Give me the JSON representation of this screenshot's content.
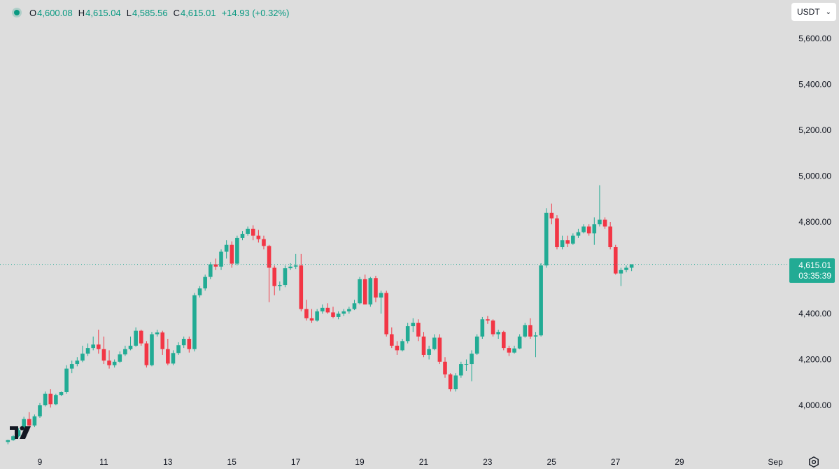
{
  "ohlc": {
    "o_label": "O",
    "o": "4,600.08",
    "h_label": "H",
    "h": "4,615.04",
    "l_label": "L",
    "l": "4,585.56",
    "c_label": "C",
    "c": "4,615.01",
    "change": "+14.93 (+0.32%)"
  },
  "currency": "USDT",
  "price_tag": {
    "price": "4,615.01",
    "countdown": "03:35:39"
  },
  "colors": {
    "up": "#22ab94",
    "down": "#f23645",
    "background": "#dddddd",
    "axis_text": "#131722"
  },
  "icons": {
    "logo": "tradingview-logo-icon",
    "settings": "gear-icon",
    "dropdown": "chevron-down-icon"
  },
  "chart_data": {
    "type": "candlestick",
    "interval": "4h",
    "y_ticks": [
      4000,
      4200,
      4400,
      4600,
      4800,
      5000,
      5200,
      5400,
      5600
    ],
    "y_tick_labels": [
      "4,000.00",
      "4,200.00",
      "4,400.00",
      "4,600.00",
      "4,800.00",
      "5,000.00",
      "5,200.00",
      "5,400.00",
      "5,600.00"
    ],
    "x_ticks": [
      {
        "label": "9",
        "t": 9
      },
      {
        "label": "11",
        "t": 11
      },
      {
        "label": "13",
        "t": 13
      },
      {
        "label": "15",
        "t": 15
      },
      {
        "label": "17",
        "t": 17
      },
      {
        "label": "19",
        "t": 19
      },
      {
        "label": "21",
        "t": 21
      },
      {
        "label": "23",
        "t": 23
      },
      {
        "label": "25",
        "t": 25
      },
      {
        "label": "27",
        "t": 27
      },
      {
        "label": "29",
        "t": 29
      },
      {
        "label": "Sep",
        "t": 32
      }
    ],
    "t_start": 8.0,
    "t_step": 0.1667,
    "last_price": 4615.01,
    "ohlc": [
      [
        3840,
        3850,
        3830,
        3848
      ],
      [
        3848,
        3870,
        3845,
        3865
      ],
      [
        3865,
        3900,
        3860,
        3892
      ],
      [
        3892,
        3950,
        3888,
        3940
      ],
      [
        3940,
        3970,
        3900,
        3912
      ],
      [
        3912,
        3960,
        3905,
        3952
      ],
      [
        3952,
        4010,
        3945,
        4000
      ],
      [
        4000,
        4060,
        3995,
        4050
      ],
      [
        4050,
        4070,
        3990,
        4005
      ],
      [
        4005,
        4050,
        4000,
        4045
      ],
      [
        4045,
        4060,
        4040,
        4058
      ],
      [
        4058,
        4175,
        4050,
        4160
      ],
      [
        4160,
        4195,
        4140,
        4180
      ],
      [
        4180,
        4210,
        4170,
        4195
      ],
      [
        4195,
        4260,
        4188,
        4225
      ],
      [
        4225,
        4270,
        4215,
        4250
      ],
      [
        4250,
        4300,
        4240,
        4265
      ],
      [
        4265,
        4330,
        4225,
        4245
      ],
      [
        4245,
        4300,
        4180,
        4195
      ],
      [
        4195,
        4240,
        4160,
        4175
      ],
      [
        4175,
        4200,
        4165,
        4190
      ],
      [
        4190,
        4235,
        4185,
        4222
      ],
      [
        4222,
        4260,
        4215,
        4245
      ],
      [
        4245,
        4300,
        4240,
        4260
      ],
      [
        4260,
        4340,
        4255,
        4325
      ],
      [
        4325,
        4330,
        4260,
        4270
      ],
      [
        4270,
        4280,
        4165,
        4175
      ],
      [
        4175,
        4320,
        4170,
        4310
      ],
      [
        4310,
        4330,
        4300,
        4318
      ],
      [
        4318,
        4325,
        4220,
        4245
      ],
      [
        4245,
        4290,
        4175,
        4182
      ],
      [
        4182,
        4240,
        4175,
        4228
      ],
      [
        4228,
        4275,
        4220,
        4262
      ],
      [
        4262,
        4300,
        4250,
        4290
      ],
      [
        4290,
        4300,
        4230,
        4245
      ],
      [
        4245,
        4490,
        4235,
        4480
      ],
      [
        4480,
        4520,
        4470,
        4510
      ],
      [
        4510,
        4570,
        4500,
        4560
      ],
      [
        4560,
        4625,
        4550,
        4615
      ],
      [
        4615,
        4640,
        4590,
        4605
      ],
      [
        4605,
        4680,
        4590,
        4670
      ],
      [
        4670,
        4720,
        4640,
        4700
      ],
      [
        4700,
        4715,
        4600,
        4618
      ],
      [
        4618,
        4740,
        4610,
        4730
      ],
      [
        4730,
        4760,
        4720,
        4748
      ],
      [
        4748,
        4780,
        4740,
        4770
      ],
      [
        4770,
        4785,
        4720,
        4740
      ],
      [
        4740,
        4765,
        4710,
        4725
      ],
      [
        4725,
        4740,
        4680,
        4695
      ],
      [
        4695,
        4700,
        4450,
        4600
      ],
      [
        4600,
        4610,
        4480,
        4520
      ],
      [
        4520,
        4540,
        4500,
        4525
      ],
      [
        4525,
        4610,
        4515,
        4598
      ],
      [
        4598,
        4620,
        4590,
        4605
      ],
      [
        4605,
        4660,
        4595,
        4610
      ],
      [
        4610,
        4660,
        4410,
        4420
      ],
      [
        4420,
        4460,
        4370,
        4380
      ],
      [
        4380,
        4420,
        4360,
        4370
      ],
      [
        4370,
        4420,
        4365,
        4410
      ],
      [
        4410,
        4440,
        4400,
        4425
      ],
      [
        4425,
        4445,
        4400,
        4405
      ],
      [
        4405,
        4430,
        4380,
        4385
      ],
      [
        4385,
        4410,
        4375,
        4400
      ],
      [
        4400,
        4420,
        4390,
        4410
      ],
      [
        4410,
        4430,
        4400,
        4420
      ],
      [
        4420,
        4460,
        4415,
        4445
      ],
      [
        4445,
        4560,
        4440,
        4550
      ],
      [
        4550,
        4570,
        4440,
        4440
      ],
      [
        4440,
        4560,
        4430,
        4555
      ],
      [
        4555,
        4565,
        4450,
        4470
      ],
      [
        4470,
        4500,
        4400,
        4490
      ],
      [
        4490,
        4500,
        4300,
        4310
      ],
      [
        4310,
        4340,
        4250,
        4260
      ],
      [
        4260,
        4280,
        4220,
        4240
      ],
      [
        4240,
        4290,
        4235,
        4280
      ],
      [
        4280,
        4360,
        4270,
        4345
      ],
      [
        4345,
        4380,
        4320,
        4360
      ],
      [
        4360,
        4375,
        4280,
        4300
      ],
      [
        4300,
        4320,
        4210,
        4220
      ],
      [
        4220,
        4260,
        4200,
        4245
      ],
      [
        4245,
        4310,
        4240,
        4295
      ],
      [
        4295,
        4310,
        4180,
        4190
      ],
      [
        4190,
        4210,
        4120,
        4135
      ],
      [
        4135,
        4140,
        4060,
        4070
      ],
      [
        4070,
        4140,
        4060,
        4130
      ],
      [
        4130,
        4190,
        4120,
        4180
      ],
      [
        4180,
        4200,
        4150,
        4180
      ],
      [
        4180,
        4240,
        4105,
        4225
      ],
      [
        4225,
        4310,
        4220,
        4300
      ],
      [
        4300,
        4385,
        4290,
        4375
      ],
      [
        4375,
        4390,
        4355,
        4370
      ],
      [
        4370,
        4375,
        4300,
        4310
      ],
      [
        4310,
        4330,
        4290,
        4320
      ],
      [
        4320,
        4325,
        4240,
        4250
      ],
      [
        4250,
        4260,
        4215,
        4230
      ],
      [
        4230,
        4260,
        4225,
        4248
      ],
      [
        4248,
        4310,
        4245,
        4300
      ],
      [
        4300,
        4360,
        4295,
        4350
      ],
      [
        4350,
        4380,
        4290,
        4300
      ],
      [
        4300,
        4320,
        4210,
        4305
      ],
      [
        4305,
        4620,
        4300,
        4610
      ],
      [
        4610,
        4860,
        4600,
        4840
      ],
      [
        4840,
        4880,
        4790,
        4815
      ],
      [
        4815,
        4830,
        4680,
        4690
      ],
      [
        4690,
        4740,
        4680,
        4720
      ],
      [
        4720,
        4740,
        4690,
        4705
      ],
      [
        4705,
        4750,
        4700,
        4740
      ],
      [
        4740,
        4770,
        4730,
        4755
      ],
      [
        4755,
        4790,
        4750,
        4780
      ],
      [
        4780,
        4790,
        4740,
        4750
      ],
      [
        4750,
        4820,
        4700,
        4790
      ],
      [
        4790,
        4960,
        4780,
        4810
      ],
      [
        4810,
        4820,
        4770,
        4780
      ],
      [
        4780,
        4800,
        4680,
        4690
      ],
      [
        4690,
        4700,
        4570,
        4575
      ],
      [
        4575,
        4600,
        4520,
        4590
      ],
      [
        4590,
        4610,
        4580,
        4600
      ],
      [
        4600.08,
        4615.04,
        4585.56,
        4615.01
      ]
    ]
  }
}
